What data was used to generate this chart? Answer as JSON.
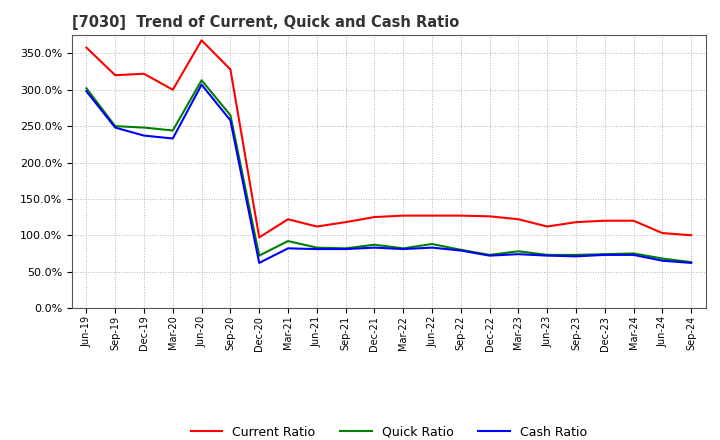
{
  "title": "[7030]  Trend of Current, Quick and Cash Ratio",
  "labels": [
    "Jun-19",
    "Sep-19",
    "Dec-19",
    "Mar-20",
    "Jun-20",
    "Sep-20",
    "Dec-20",
    "Mar-21",
    "Jun-21",
    "Sep-21",
    "Dec-21",
    "Mar-22",
    "Jun-22",
    "Sep-22",
    "Dec-22",
    "Mar-23",
    "Jun-23",
    "Sep-23",
    "Dec-23",
    "Mar-24",
    "Jun-24",
    "Sep-24"
  ],
  "current_ratio": [
    358,
    320,
    322,
    300,
    368,
    328,
    97,
    122,
    112,
    118,
    125,
    127,
    127,
    127,
    126,
    122,
    112,
    118,
    120,
    120,
    103,
    100
  ],
  "quick_ratio": [
    302,
    250,
    248,
    244,
    313,
    265,
    72,
    92,
    83,
    82,
    87,
    82,
    88,
    80,
    73,
    78,
    73,
    73,
    74,
    75,
    68,
    63
  ],
  "cash_ratio": [
    298,
    248,
    237,
    233,
    307,
    258,
    62,
    82,
    81,
    81,
    83,
    81,
    83,
    79,
    72,
    74,
    72,
    71,
    73,
    73,
    65,
    62
  ],
  "ylim": [
    0,
    375
  ],
  "yticks": [
    0,
    50,
    100,
    150,
    200,
    250,
    300,
    350
  ],
  "current_color": "#ff0000",
  "quick_color": "#008000",
  "cash_color": "#0000ff",
  "bg_color": "#ffffff",
  "plot_bg_color": "#ffffff",
  "grid_color": "#aaaaaa",
  "title_color": "#333333",
  "legend_labels": [
    "Current Ratio",
    "Quick Ratio",
    "Cash Ratio"
  ]
}
